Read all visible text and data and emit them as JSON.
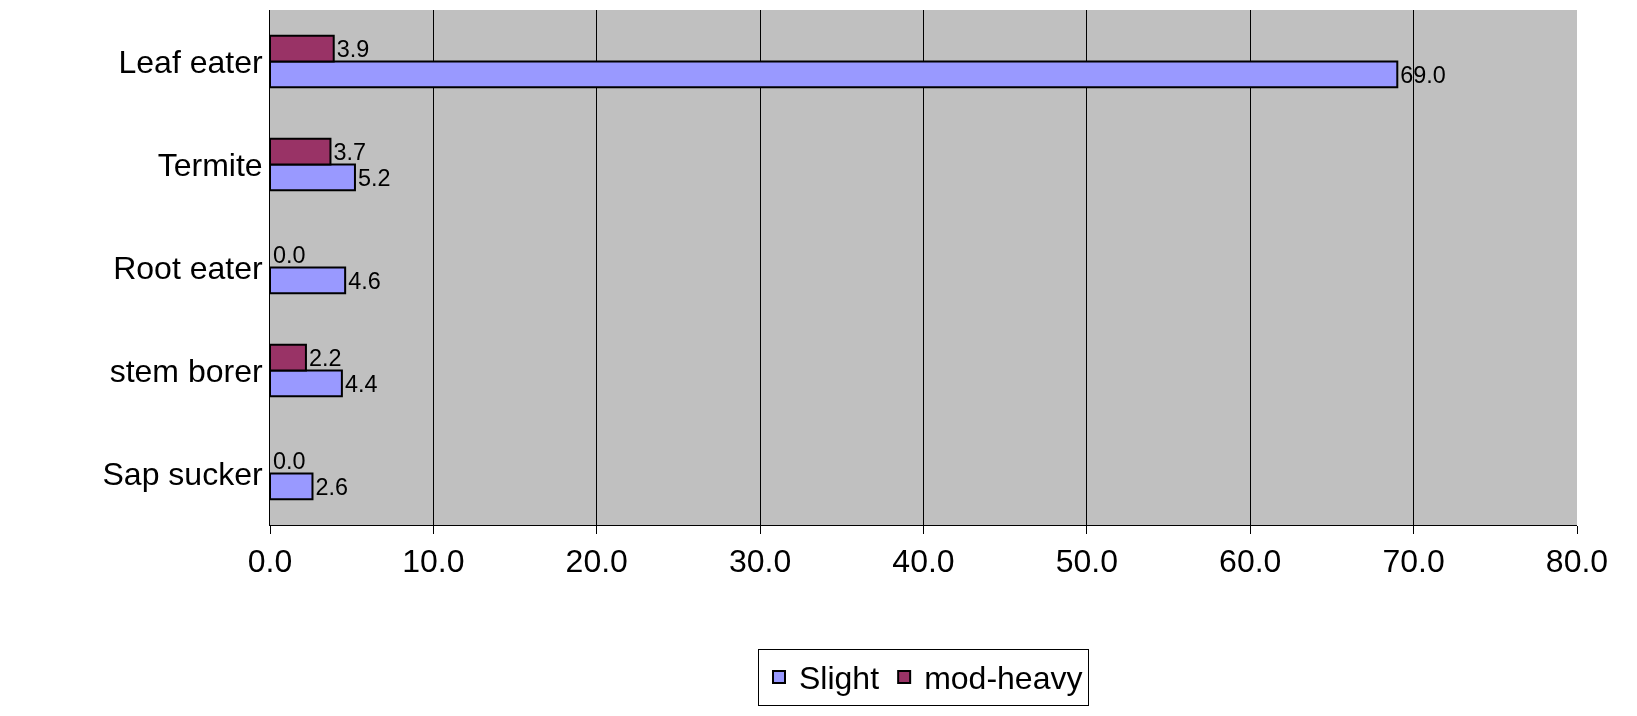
{
  "chart_data": {
    "type": "bar",
    "orientation": "horizontal",
    "categories": [
      "Leaf eater",
      "Termite",
      "Root eater",
      "stem borer",
      "Sap sucker"
    ],
    "series": [
      {
        "name": "Slight",
        "color": "#9999ff",
        "values": [
          69.0,
          5.2,
          4.6,
          4.4,
          2.6
        ],
        "value_labels": [
          "69.0",
          "5.2",
          "4.6",
          "4.4",
          "2.6"
        ]
      },
      {
        "name": "mod-heavy",
        "color": "#993366",
        "values": [
          3.9,
          3.7,
          0.0,
          2.2,
          0.0
        ],
        "value_labels": [
          "3.9",
          "3.7",
          "0.0",
          "2.2",
          "0.0"
        ]
      }
    ],
    "xlim": [
      0,
      80
    ],
    "xticks": [
      {
        "value": 0,
        "label": "0.0"
      },
      {
        "value": 10,
        "label": "10.0"
      },
      {
        "value": 20,
        "label": "20.0"
      },
      {
        "value": 30,
        "label": "30.0"
      },
      {
        "value": 40,
        "label": "40.0"
      },
      {
        "value": 50,
        "label": "50.0"
      },
      {
        "value": 60,
        "label": "60.0"
      },
      {
        "value": 70,
        "label": "70.0"
      },
      {
        "value": 80,
        "label": "80.0"
      }
    ],
    "grid": "x",
    "legend": "bottom"
  }
}
